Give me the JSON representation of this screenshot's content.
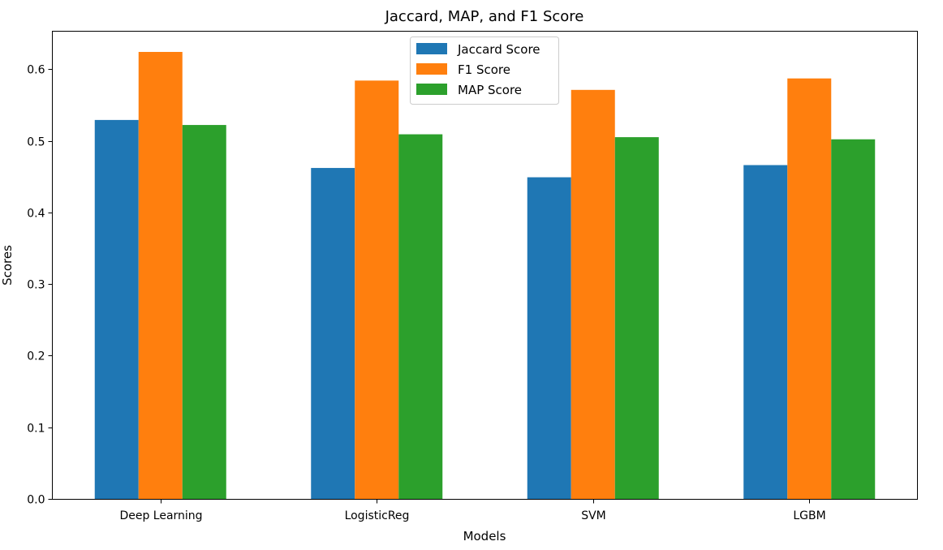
{
  "chart_data": {
    "type": "bar",
    "title": "Jaccard, MAP, and F1 Score",
    "xlabel": "Models",
    "ylabel": "Scores",
    "categories": [
      "Deep Learning",
      "LogisticReg",
      "SVM",
      "LGBM"
    ],
    "series": [
      {
        "name": "Jaccard Score",
        "color": "#1f77b4",
        "values": [
          0.529,
          0.462,
          0.449,
          0.466
        ]
      },
      {
        "name": "F1 Score",
        "color": "#ff7f0e",
        "values": [
          0.624,
          0.584,
          0.571,
          0.587
        ]
      },
      {
        "name": "MAP Score",
        "color": "#2ca02c",
        "values": [
          0.522,
          0.509,
          0.505,
          0.502
        ]
      }
    ],
    "ylim": [
      0,
      0.65
    ],
    "yticks": [
      "0.0",
      "0.1",
      "0.2",
      "0.3",
      "0.4",
      "0.5",
      "0.6"
    ],
    "grid": false,
    "legend": "top-center"
  }
}
